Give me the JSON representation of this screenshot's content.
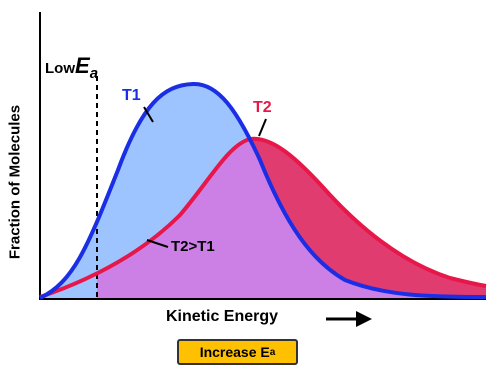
{
  "labels": {
    "low_ea_prefix": "Low",
    "ea_symbol": "E",
    "ea_subscript": "a",
    "t1": "T1",
    "t2": "T2",
    "compare": "T2>T1",
    "y_axis": "Fraction of Molecules",
    "x_axis": "Kinetic Energy"
  },
  "button": {
    "text": "Increase E",
    "subscript": "a"
  },
  "colors": {
    "t1_curve": "#1a2ee6",
    "t1_fill": "#9ec4ff",
    "t2_curve": "#e8174a",
    "t2_fill": "#e03c70",
    "overlap_fill": "#cc80e6",
    "button_bg": "#ffc000"
  },
  "icons": [
    "right-arrow-icon"
  ]
}
